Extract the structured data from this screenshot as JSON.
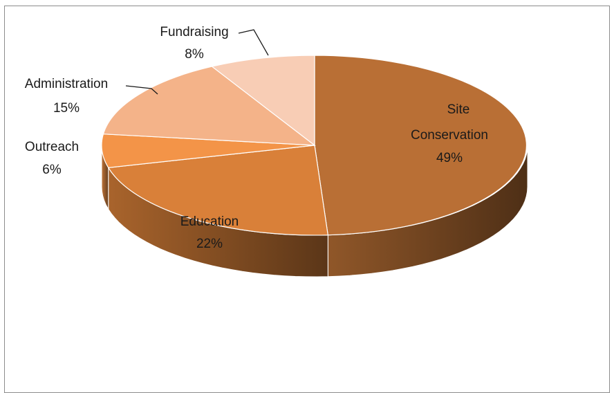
{
  "chart_data": {
    "type": "pie",
    "style": "3d",
    "slices": [
      {
        "key": "site",
        "label": "Site Conservation",
        "value": 49,
        "value_label": "49%",
        "color": "#B96F35",
        "label_placement": "inside"
      },
      {
        "key": "edu",
        "label": "Education",
        "value": 22,
        "value_label": "22%",
        "color": "#D98039",
        "label_placement": "inside"
      },
      {
        "key": "out",
        "label": "Outreach",
        "value": 6,
        "value_label": "6%",
        "color": "#F39448",
        "label_placement": "outside"
      },
      {
        "key": "adm",
        "label": "Administration",
        "value": 15,
        "value_label": "15%",
        "color": "#F4B389",
        "label_placement": "outside"
      },
      {
        "key": "fund",
        "label": "Fundraising",
        "value": 8,
        "value_label": "8%",
        "color": "#F8CDB5",
        "label_placement": "outside"
      }
    ]
  }
}
